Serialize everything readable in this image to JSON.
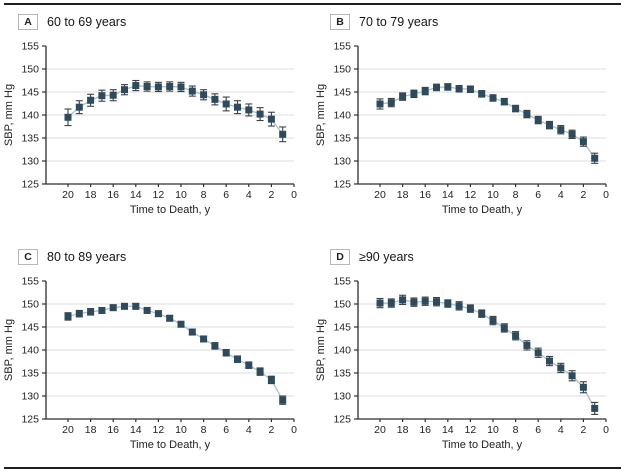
{
  "figure": {
    "x_axis_label": "Time to Death, y",
    "y_axis_label": "SBP, mm Hg",
    "colors": {
      "marker": "#2d4b5d",
      "series_line": "#a9bfca",
      "error_bar": "#3f3f3f",
      "gridline": "#dcdcdc",
      "axis": "#2e2e2e",
      "tick_text": "#232323",
      "rule": "#1f1f1f"
    }
  },
  "chart_data": [
    {
      "type": "line",
      "panel_label": "A",
      "title": "60 to 69 years",
      "xlabel": "Time to Death, y",
      "ylabel": "SBP, mm Hg",
      "x": [
        20,
        19,
        18,
        17,
        16,
        15,
        14,
        13,
        12,
        11,
        10,
        9,
        8,
        7,
        6,
        5,
        4,
        3,
        2,
        1
      ],
      "values": [
        139.5,
        141.7,
        143.2,
        144.2,
        144.3,
        145.5,
        146.4,
        146.2,
        146.1,
        146.2,
        146.1,
        145.2,
        144.4,
        143.4,
        142.4,
        141.7,
        141.1,
        140.2,
        139.1,
        135.8
      ],
      "errors": [
        1.8,
        1.4,
        1.3,
        1.2,
        1.2,
        1.1,
        1.1,
        1.0,
        1.0,
        1.0,
        1.0,
        1.1,
        1.1,
        1.2,
        1.5,
        1.4,
        1.3,
        1.4,
        1.5,
        1.6
      ],
      "ylim": [
        125,
        155
      ],
      "xlim": [
        20,
        0
      ],
      "yticks": [
        125,
        130,
        135,
        140,
        145,
        150,
        155
      ],
      "xticks": [
        20,
        18,
        16,
        14,
        12,
        10,
        8,
        6,
        4,
        2,
        0
      ],
      "x_axis_reversed": true,
      "grid": true,
      "marker": "square",
      "legend": "none"
    },
    {
      "type": "line",
      "panel_label": "B",
      "title": "70 to 79 years",
      "xlabel": "Time to Death, y",
      "ylabel": "SBP, mm Hg",
      "x": [
        20,
        19,
        18,
        17,
        16,
        15,
        14,
        13,
        12,
        11,
        10,
        9,
        8,
        7,
        6,
        5,
        4,
        3,
        2,
        1
      ],
      "values": [
        142.4,
        142.7,
        144.0,
        144.6,
        145.2,
        146.0,
        146.1,
        145.7,
        145.6,
        144.6,
        143.7,
        142.9,
        141.4,
        140.2,
        138.9,
        137.8,
        136.8,
        135.8,
        134.2,
        130.6
      ],
      "errors": [
        1.1,
        0.9,
        0.8,
        0.8,
        0.8,
        0.7,
        0.7,
        0.7,
        0.7,
        0.7,
        0.7,
        0.7,
        0.7,
        0.8,
        0.8,
        0.8,
        0.9,
        0.9,
        1.0,
        1.1
      ],
      "ylim": [
        125,
        155
      ],
      "xlim": [
        20,
        0
      ],
      "yticks": [
        125,
        130,
        135,
        140,
        145,
        150,
        155
      ],
      "xticks": [
        20,
        18,
        16,
        14,
        12,
        10,
        8,
        6,
        4,
        2,
        0
      ],
      "x_axis_reversed": true,
      "grid": true,
      "marker": "square",
      "legend": "none"
    },
    {
      "type": "line",
      "panel_label": "C",
      "title": "80 to 89 years",
      "xlabel": "Time to Death, y",
      "ylabel": "SBP, mm Hg",
      "x": [
        20,
        19,
        18,
        17,
        16,
        15,
        14,
        13,
        12,
        11,
        10,
        9,
        8,
        7,
        6,
        5,
        4,
        3,
        2,
        1
      ],
      "values": [
        147.3,
        147.9,
        148.3,
        148.6,
        149.2,
        149.5,
        149.5,
        148.6,
        147.9,
        146.9,
        145.6,
        143.9,
        142.4,
        140.9,
        139.4,
        138.0,
        136.7,
        135.3,
        133.5,
        129.1
      ],
      "errors": [
        0.8,
        0.7,
        0.7,
        0.6,
        0.6,
        0.6,
        0.6,
        0.6,
        0.6,
        0.6,
        0.6,
        0.6,
        0.6,
        0.7,
        0.7,
        0.7,
        0.7,
        0.8,
        0.8,
        0.9
      ],
      "ylim": [
        125,
        155
      ],
      "xlim": [
        20,
        0
      ],
      "yticks": [
        125,
        130,
        135,
        140,
        145,
        150,
        155
      ],
      "xticks": [
        20,
        18,
        16,
        14,
        12,
        10,
        8,
        6,
        4,
        2,
        0
      ],
      "x_axis_reversed": true,
      "grid": true,
      "marker": "square",
      "legend": "none"
    },
    {
      "type": "line",
      "panel_label": "D",
      "title": "≥90 years",
      "xlabel": "Time to Death, y",
      "ylabel": "SBP, mm Hg",
      "x": [
        20,
        19,
        18,
        17,
        16,
        15,
        14,
        13,
        12,
        11,
        10,
        9,
        8,
        7,
        6,
        5,
        4,
        3,
        2,
        1
      ],
      "values": [
        150.2,
        150.2,
        150.9,
        150.4,
        150.6,
        150.5,
        150.1,
        149.6,
        149.0,
        147.9,
        146.4,
        144.8,
        143.1,
        141.0,
        139.4,
        137.6,
        136.1,
        134.4,
        131.9,
        127.3
      ],
      "errors": [
        1.0,
        0.9,
        1.0,
        0.9,
        0.9,
        0.9,
        0.8,
        0.9,
        0.8,
        0.8,
        0.9,
        0.9,
        0.9,
        1.0,
        1.0,
        1.0,
        1.0,
        1.1,
        1.2,
        1.3
      ],
      "ylim": [
        125,
        155
      ],
      "xlim": [
        20,
        0
      ],
      "yticks": [
        125,
        130,
        135,
        140,
        145,
        150,
        155
      ],
      "xticks": [
        20,
        18,
        16,
        14,
        12,
        10,
        8,
        6,
        4,
        2,
        0
      ],
      "x_axis_reversed": true,
      "grid": true,
      "marker": "square",
      "legend": "none"
    }
  ]
}
